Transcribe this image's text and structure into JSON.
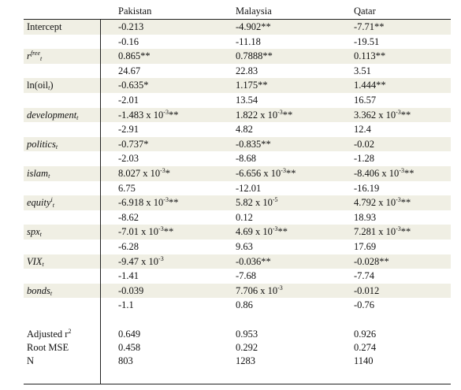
{
  "columns": [
    "Pakistan",
    "Malaysia",
    "Qatar"
  ],
  "rows": [
    {
      "label": "Intercept",
      "vals": [
        "-0.213",
        "-4.902**",
        "-7.71**"
      ],
      "shade": true
    },
    {
      "label": "",
      "vals": [
        "-0.16",
        "-11.18",
        "-19.51"
      ]
    },
    {
      "label": "r",
      "vals": [
        "0.865**",
        "0.7888**",
        "0.113**"
      ],
      "shade": true,
      "var": "rf"
    },
    {
      "label": "",
      "vals": [
        "24.67",
        "22.83",
        "3.51"
      ]
    },
    {
      "label": "ln(oil",
      "vals": [
        "-0.635*",
        "1.175**",
        "1.444**"
      ],
      "shade": true,
      "var": "oil"
    },
    {
      "label": "",
      "vals": [
        "-2.01",
        "13.54",
        "16.57"
      ]
    },
    {
      "label": "development",
      "vals": [
        "-1.483 x 10",
        "1.822 x 10",
        "3.362 x 10"
      ],
      "shade": true,
      "var": "italic",
      "exps": [
        "-3",
        "-3",
        "-3"
      ],
      "stars": [
        "**",
        "**",
        "**"
      ]
    },
    {
      "label": "",
      "vals": [
        "-2.91",
        "4.82",
        "12.4"
      ]
    },
    {
      "label": "politics",
      "vals": [
        "-0.737*",
        "-0.835**",
        "-0.02"
      ],
      "shade": true,
      "var": "italic"
    },
    {
      "label": "",
      "vals": [
        "-2.03",
        "-8.68",
        "-1.28"
      ]
    },
    {
      "label": "islam",
      "vals": [
        "8.027 x 10",
        "-6.656 x 10",
        "-8.406 x 10"
      ],
      "shade": true,
      "var": "italic",
      "exps": [
        "-3",
        "-3",
        "-3"
      ],
      "stars": [
        "*",
        "**",
        "**"
      ]
    },
    {
      "label": "",
      "vals": [
        "6.75",
        "-12.01",
        "-16.19"
      ]
    },
    {
      "label": "equity",
      "vals": [
        "-6.918 x 10",
        "5.82 x 10",
        "4.792 x 10"
      ],
      "shade": true,
      "var": "equity",
      "exps": [
        "-3",
        "-5",
        "-3"
      ],
      "stars": [
        "**",
        "",
        "**"
      ]
    },
    {
      "label": "",
      "vals": [
        "-8.62",
        "0.12",
        "18.93"
      ]
    },
    {
      "label": "spx",
      "vals": [
        "-7.01 x 10",
        "4.69 x 10",
        "7.281 x 10"
      ],
      "shade": true,
      "var": "italic",
      "exps": [
        "-3",
        "-3",
        "-3"
      ],
      "stars": [
        "**",
        "**",
        "**"
      ]
    },
    {
      "label": "",
      "vals": [
        "-6.28",
        "9.63",
        "17.69"
      ]
    },
    {
      "label": "VIX",
      "vals": [
        "-9.47 x 10",
        "-0.036**",
        "-0.028**"
      ],
      "shade": true,
      "var": "italic",
      "exps": [
        "-3",
        null,
        null
      ],
      "stars": [
        "",
        "",
        ""
      ]
    },
    {
      "label": "",
      "vals": [
        "-1.41",
        "-7.68",
        "-7.74"
      ]
    },
    {
      "label": "bonds",
      "vals": [
        "-0.039",
        "7.706 x 10",
        "-0.012"
      ],
      "shade": true,
      "var": "italic",
      "exps": [
        null,
        "-3",
        null
      ],
      "stars": [
        "",
        "",
        ""
      ]
    },
    {
      "label": "",
      "vals": [
        "-1.1",
        "0.86",
        "-0.76"
      ]
    }
  ],
  "stats": [
    {
      "label": "Adjusted r",
      "sup": "2",
      "vals": [
        "0.649",
        "0.953",
        "0.926"
      ]
    },
    {
      "label": "Root MSE",
      "vals": [
        "0.458",
        "0.292",
        "0.274"
      ]
    },
    {
      "label": "N",
      "vals": [
        "803",
        "1283",
        "1140"
      ]
    }
  ],
  "subscript_t": "t",
  "sup_free": "free",
  "sup_i": "i",
  "shade_color": "#f0efe4"
}
